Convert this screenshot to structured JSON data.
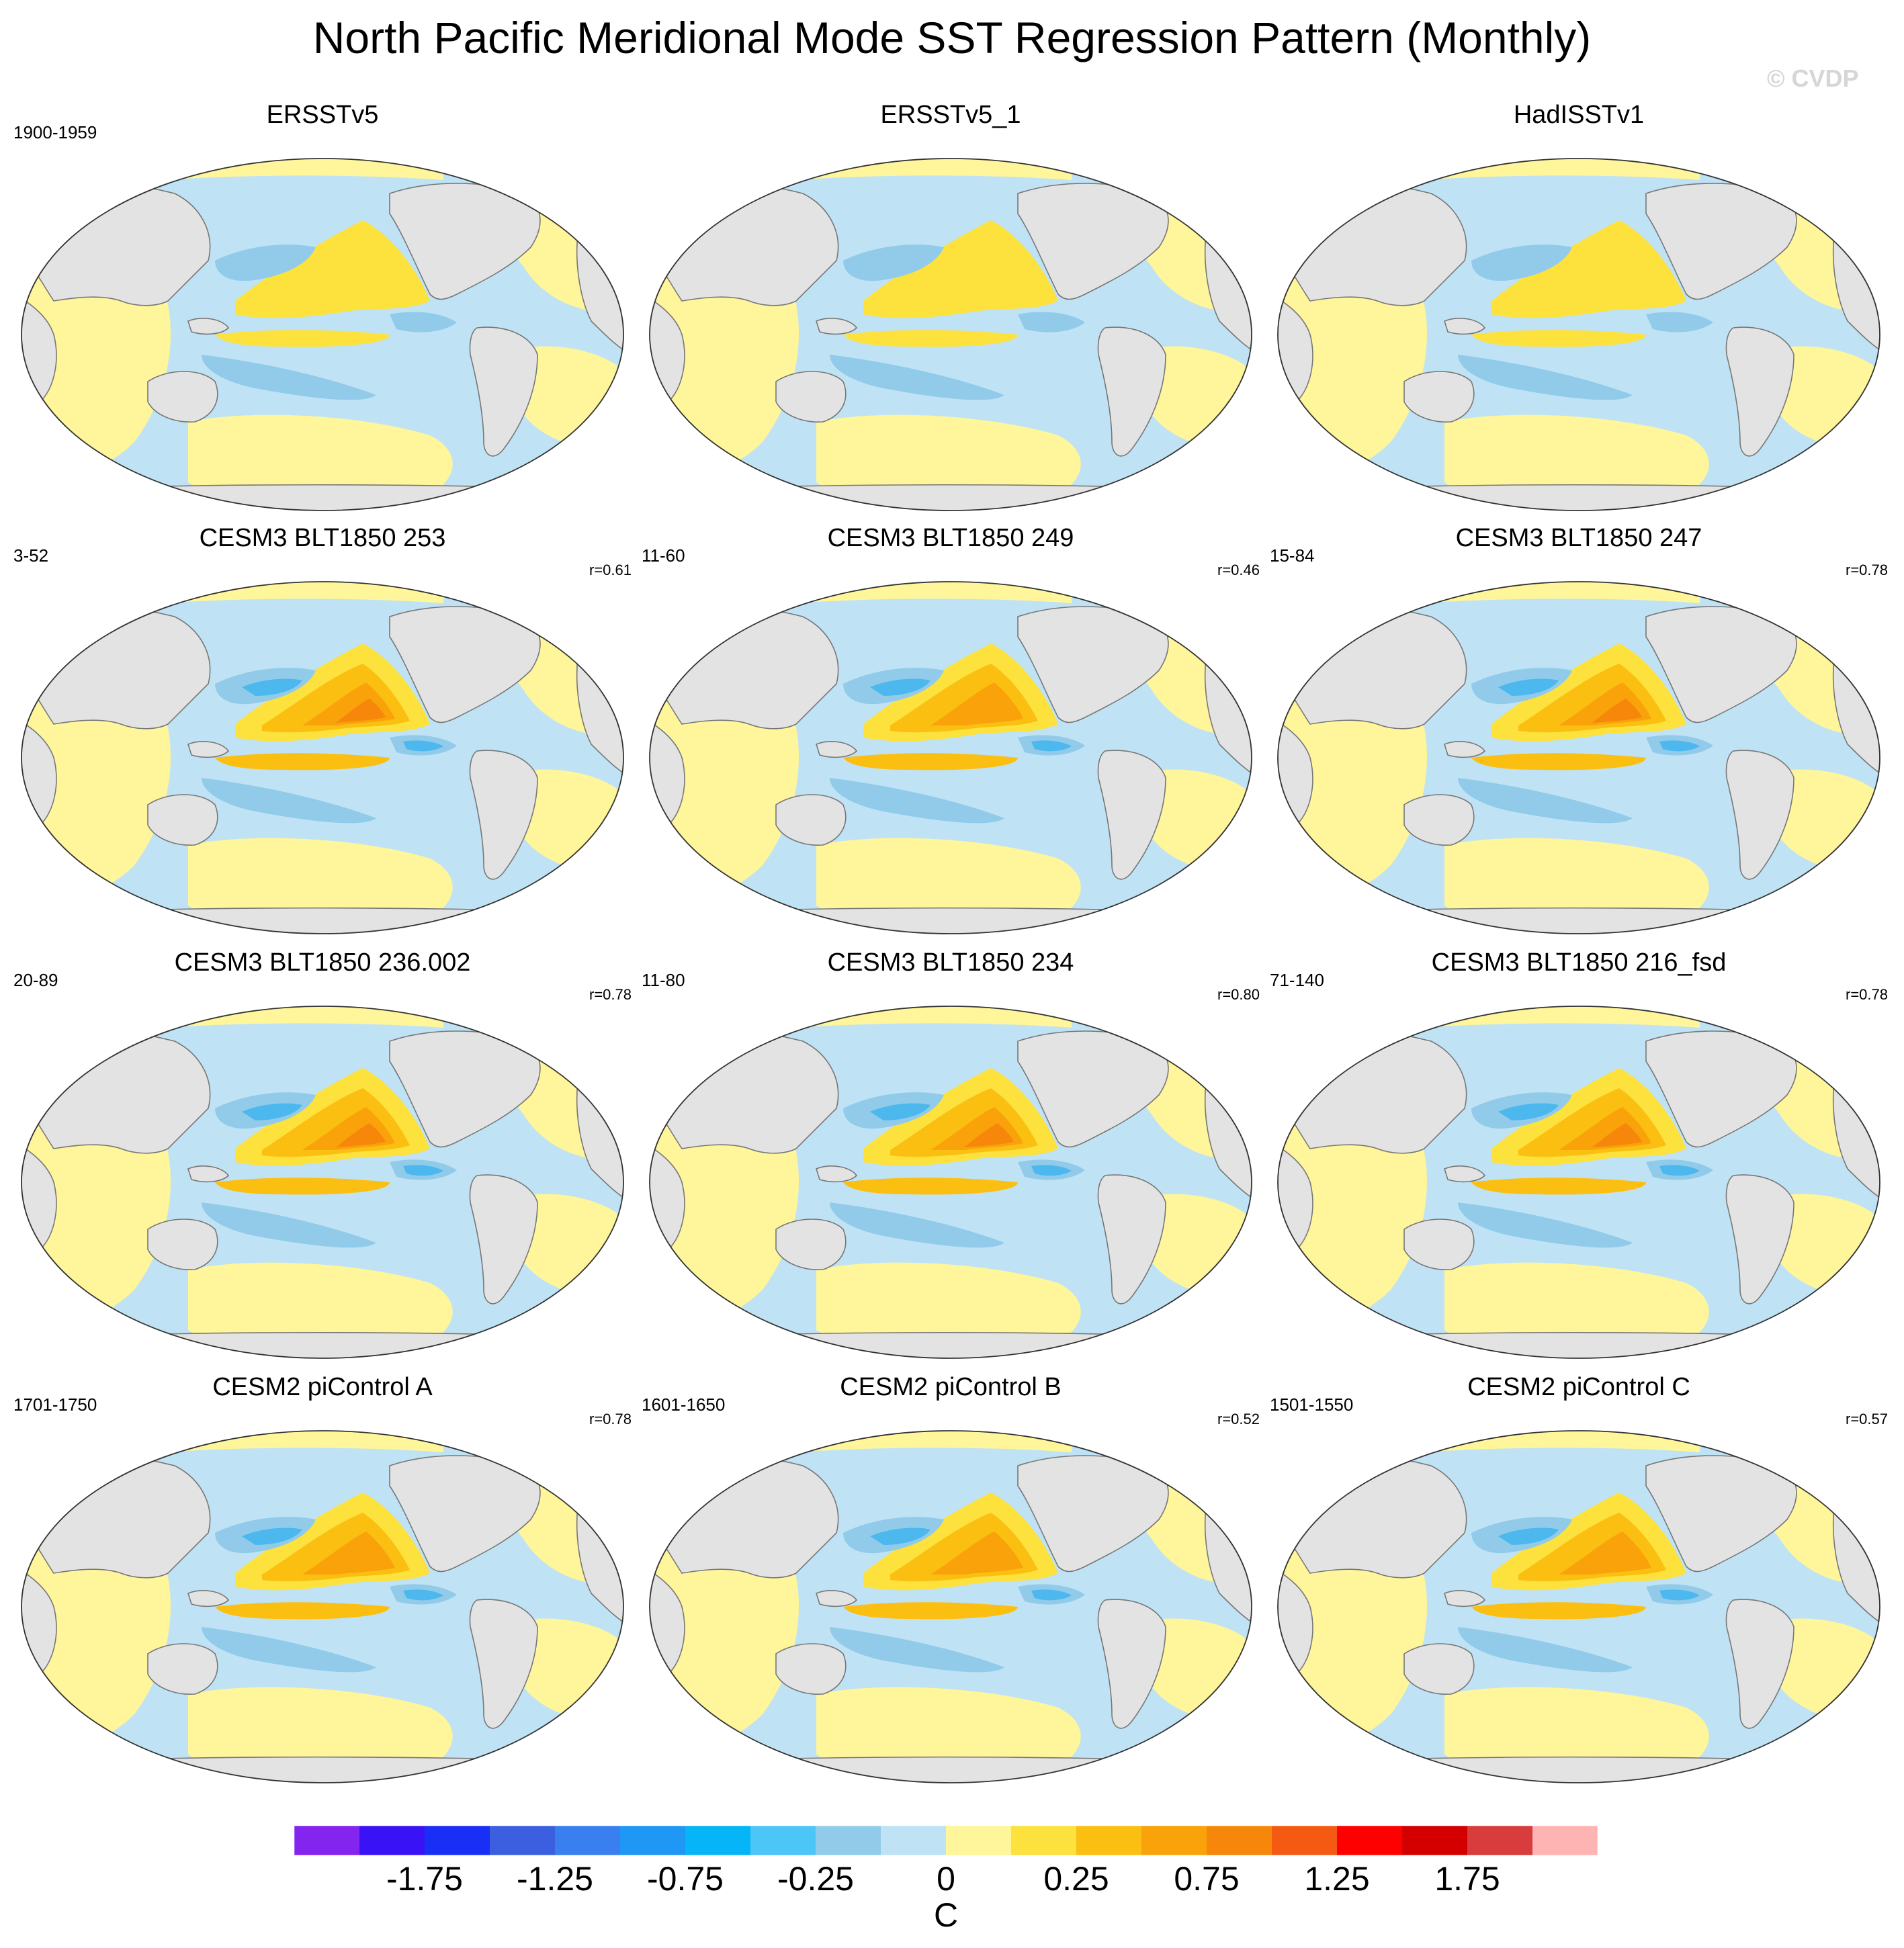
{
  "title": "North Pacific Meridional Mode SST Regression Pattern (Monthly)",
  "watermark": "© CVDP",
  "colors": {
    "land": "#e3e3e3",
    "coast": "#777777",
    "neg_lightest": "#bfe3f5",
    "neg_light": "#92cbea",
    "neg_mid": "#4cb8ee",
    "neg_strong": "#1e97f5",
    "pos_lightest": "#fff59a",
    "pos_light": "#fde13c",
    "pos_mid": "#fbbf12",
    "pos_strong": "#f9a20a",
    "pos_stronger": "#f7870a"
  },
  "chart_data": {
    "type": "heatmap",
    "title": "North Pacific Meridional Mode SST Regression Pattern (Monthly)",
    "projection": "Robinson global map, Pacific-centered",
    "variable": "SST regression",
    "units": "C",
    "colorbar": {
      "levels": [
        -2.0,
        -1.75,
        -1.5,
        -1.25,
        -1.0,
        -0.75,
        -0.5,
        -0.25,
        -0.1,
        0,
        0.1,
        0.25,
        0.5,
        0.75,
        1.0,
        1.25,
        1.5,
        1.75,
        2.0
      ],
      "colors": [
        "#8325ee",
        "#3913f5",
        "#1a2ff5",
        "#3c5fe0",
        "#3a7ff0",
        "#1e97f5",
        "#06b5f8",
        "#4cc6f7",
        "#92cbea",
        "#bfe3f5",
        "#fff59a",
        "#fde13c",
        "#fbbf12",
        "#f9a20a",
        "#f7870a",
        "#f55a13",
        "#ff0000",
        "#d40000",
        "#d83c3c",
        "#ffb4b4"
      ],
      "tick_labels": [
        "-1.75",
        "-1.25",
        "-0.75",
        "-0.25",
        "0",
        "0.25",
        "0.75",
        "1.25",
        "1.75"
      ],
      "label": "C"
    },
    "panels": [
      {
        "name": "ERSSTv5",
        "period": "1900-1959",
        "corr": "",
        "intensity": 2
      },
      {
        "name": "ERSSTv5_1",
        "period": "",
        "corr": "",
        "intensity": 2
      },
      {
        "name": "HadISSTv1",
        "period": "",
        "corr": "",
        "intensity": 2
      },
      {
        "name": "CESM3 BLT1850 253",
        "period": "3-52",
        "corr": "r=0.61",
        "intensity": 4
      },
      {
        "name": "CESM3 BLT1850 249",
        "period": "11-60",
        "corr": "r=0.46",
        "intensity": 3
      },
      {
        "name": "CESM3 BLT1850 247",
        "period": "15-84",
        "corr": "r=0.78",
        "intensity": 4
      },
      {
        "name": "CESM3 BLT1850 236.002",
        "period": "20-89",
        "corr": "r=0.78",
        "intensity": 4
      },
      {
        "name": "CESM3 BLT1850 234",
        "period": "11-80",
        "corr": "r=0.80",
        "intensity": 4
      },
      {
        "name": "CESM3 BLT1850 216_fsd",
        "period": "71-140",
        "corr": "r=0.78",
        "intensity": 4
      },
      {
        "name": "CESM2 piControl A",
        "period": "1701-1750",
        "corr": "r=0.78",
        "intensity": 3
      },
      {
        "name": "CESM2 piControl B",
        "period": "1601-1650",
        "corr": "r=0.52",
        "intensity": 3
      },
      {
        "name": "CESM2 piControl C",
        "period": "1501-1550",
        "corr": "r=0.57",
        "intensity": 3
      }
    ]
  }
}
